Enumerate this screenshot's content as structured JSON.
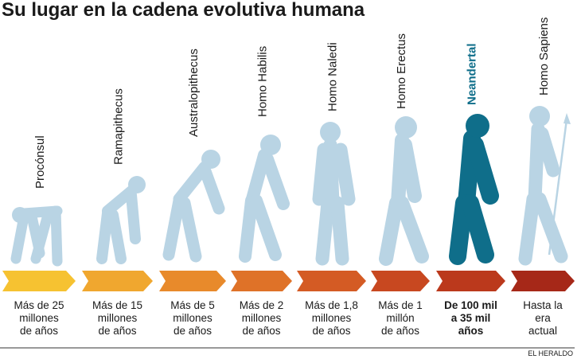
{
  "header": {
    "title": "Su lugar en la cadena evolutiva humana"
  },
  "figure_color": "#b9d4e4",
  "highlight_color": "#0f6e8a",
  "stages": [
    {
      "name": "Procónsul",
      "time": [
        "Más de 25",
        "millones",
        "de años"
      ],
      "arrow_color": "#f6c231"
    },
    {
      "name": "Ramapithecus",
      "time": [
        "Más de 15",
        "millones",
        "de años"
      ],
      "arrow_color": "#f0a72f"
    },
    {
      "name": "Australopithecus",
      "time": [
        "Más de 5",
        "millones",
        "de años"
      ],
      "arrow_color": "#e88a2b"
    },
    {
      "name": "Homo Habilis",
      "time": [
        "Más de 2",
        "millones",
        "de años"
      ],
      "arrow_color": "#df7228"
    },
    {
      "name": "Homo Naledi",
      "time": [
        "Más de 1,8",
        "millones",
        "de años"
      ],
      "arrow_color": "#d45b24"
    },
    {
      "name": "Homo Erectus",
      "time": [
        "Más de 1",
        "millón",
        "de años"
      ],
      "arrow_color": "#c84820"
    },
    {
      "name": "Neandertal",
      "time": [
        "De 100 mil",
        "a 35 mil",
        "años"
      ],
      "arrow_color": "#bb391c",
      "highlight": true
    },
    {
      "name": "Homo Sapiens",
      "time": [
        "Hasta la",
        "era",
        "actual"
      ],
      "arrow_color": "#a62818"
    }
  ],
  "source": "EL HERALDO"
}
